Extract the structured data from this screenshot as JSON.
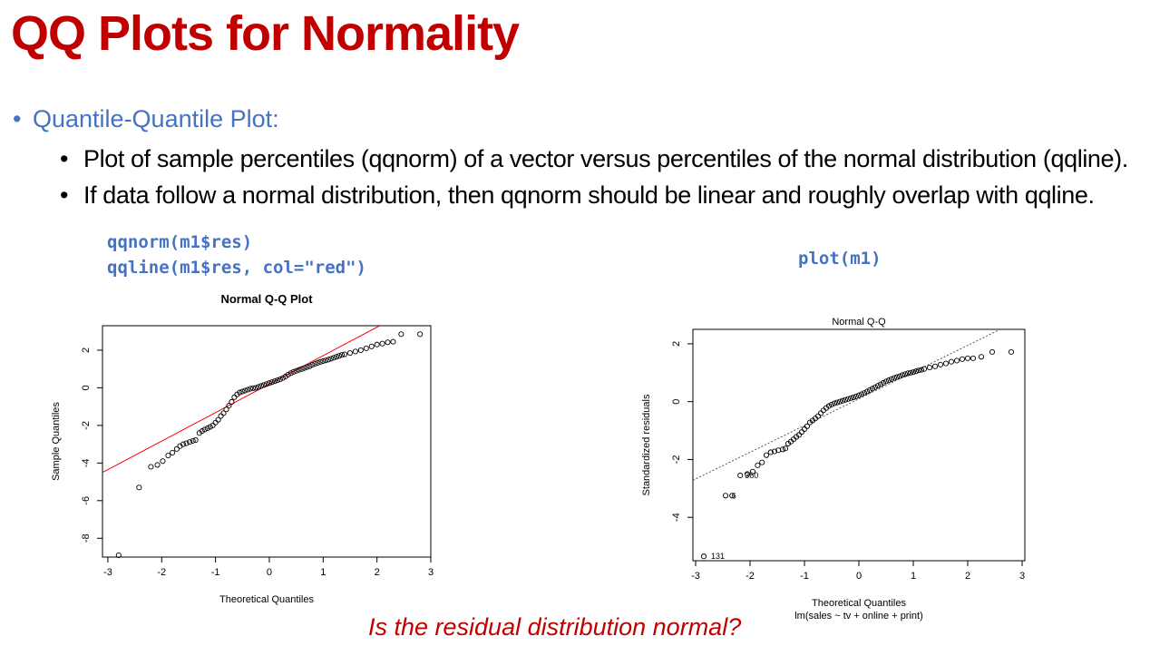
{
  "title": "QQ Plots for Normality",
  "bullet_main": "Quantile-Quantile Plot:",
  "bullet_sub": [
    "Plot of sample percentiles (qqnorm) of a vector versus percentiles of the normal distribution (qqline).",
    "If data follow a normal distribution, then qqnorm should be linear and roughly overlap with qqline."
  ],
  "code_left": [
    "qqnorm(m1$res)",
    "qqline(m1$res, col=\"red\")"
  ],
  "code_right": "plot(m1)",
  "question": "Is the residual distribution normal?",
  "colors": {
    "title": "#c00000",
    "bullet": "#4472c4",
    "code": "#4472c4",
    "line_left": "#ff0000",
    "line_right": "#555555"
  },
  "chart_data": [
    {
      "type": "scatter",
      "title": "Normal Q-Q Plot",
      "xlabel": "Theoretical Quantiles",
      "ylabel": "Sample Quantiles",
      "xlim": [
        -3.1,
        3.0
      ],
      "ylim": [
        -9.0,
        3.3
      ],
      "xticks": [
        -3,
        -2,
        -1,
        0,
        1,
        2,
        3
      ],
      "yticks": [
        -8,
        -6,
        -4,
        -2,
        0,
        2
      ],
      "reference_line": {
        "style": "solid",
        "color": "red",
        "points": [
          [
            -3.1,
            -4.5
          ],
          [
            2.05,
            3.3
          ]
        ]
      },
      "points": [
        [
          -2.8,
          -8.9
        ],
        [
          -2.42,
          -5.3
        ],
        [
          -2.2,
          -4.2
        ],
        [
          -2.08,
          -4.1
        ],
        [
          -1.98,
          -3.9
        ],
        [
          -1.88,
          -3.6
        ],
        [
          -1.8,
          -3.45
        ],
        [
          -1.72,
          -3.25
        ],
        [
          -1.66,
          -3.1
        ],
        [
          -1.6,
          -3.0
        ],
        [
          -1.54,
          -2.95
        ],
        [
          -1.48,
          -2.88
        ],
        [
          -1.42,
          -2.82
        ],
        [
          -1.37,
          -2.78
        ],
        [
          -1.3,
          -2.4
        ],
        [
          -1.25,
          -2.3
        ],
        [
          -1.2,
          -2.22
        ],
        [
          -1.15,
          -2.15
        ],
        [
          -1.1,
          -2.08
        ],
        [
          -1.05,
          -2.0
        ],
        [
          -1.0,
          -1.85
        ],
        [
          -0.95,
          -1.7
        ],
        [
          -0.9,
          -1.5
        ],
        [
          -0.85,
          -1.35
        ],
        [
          -0.8,
          -1.15
        ],
        [
          -0.75,
          -0.95
        ],
        [
          -0.7,
          -0.75
        ],
        [
          -0.65,
          -0.5
        ],
        [
          -0.6,
          -0.35
        ],
        [
          -0.55,
          -0.25
        ],
        [
          -0.5,
          -0.2
        ],
        [
          -0.45,
          -0.15
        ],
        [
          -0.4,
          -0.1
        ],
        [
          -0.35,
          -0.05
        ],
        [
          -0.3,
          -0.02
        ],
        [
          -0.25,
          0.0
        ],
        [
          -0.2,
          0.05
        ],
        [
          -0.15,
          0.1
        ],
        [
          -0.1,
          0.15
        ],
        [
          -0.05,
          0.2
        ],
        [
          0.0,
          0.25
        ],
        [
          0.05,
          0.3
        ],
        [
          0.1,
          0.35
        ],
        [
          0.15,
          0.4
        ],
        [
          0.2,
          0.45
        ],
        [
          0.25,
          0.52
        ],
        [
          0.3,
          0.6
        ],
        [
          0.35,
          0.7
        ],
        [
          0.4,
          0.78
        ],
        [
          0.45,
          0.85
        ],
        [
          0.5,
          0.9
        ],
        [
          0.55,
          0.95
        ],
        [
          0.6,
          1.0
        ],
        [
          0.65,
          1.05
        ],
        [
          0.7,
          1.1
        ],
        [
          0.75,
          1.15
        ],
        [
          0.8,
          1.22
        ],
        [
          0.85,
          1.28
        ],
        [
          0.9,
          1.33
        ],
        [
          0.95,
          1.38
        ],
        [
          1.0,
          1.42
        ],
        [
          1.05,
          1.46
        ],
        [
          1.1,
          1.5
        ],
        [
          1.15,
          1.55
        ],
        [
          1.2,
          1.6
        ],
        [
          1.25,
          1.65
        ],
        [
          1.3,
          1.7
        ],
        [
          1.35,
          1.75
        ],
        [
          1.4,
          1.78
        ],
        [
          1.5,
          1.85
        ],
        [
          1.6,
          1.93
        ],
        [
          1.7,
          2.0
        ],
        [
          1.8,
          2.1
        ],
        [
          1.9,
          2.2
        ],
        [
          2.0,
          2.3
        ],
        [
          2.1,
          2.35
        ],
        [
          2.2,
          2.42
        ],
        [
          2.3,
          2.45
        ],
        [
          2.45,
          2.85
        ],
        [
          2.8,
          2.85
        ]
      ]
    },
    {
      "type": "scatter",
      "title": "Normal Q-Q",
      "xlabel": "Theoretical Quantiles",
      "ylabel": "Standardized residuals",
      "subtitle": "lm(sales ~ tv + online + print)",
      "xlim": [
        -3.05,
        3.05
      ],
      "ylim": [
        -5.5,
        2.5
      ],
      "xticks": [
        -3,
        -2,
        -1,
        0,
        1,
        2,
        3
      ],
      "yticks": [
        -4,
        -2,
        0,
        2
      ],
      "reference_line": {
        "style": "dotted",
        "color": "gray",
        "points": [
          [
            -3.05,
            -2.72
          ],
          [
            2.6,
            2.5
          ]
        ]
      },
      "labels": [
        {
          "text": "131",
          "x": -2.8,
          "y": -5.35
        },
        {
          "text": "6",
          "x": -2.42,
          "y": -3.25
        },
        {
          "text": "360",
          "x": -2.18,
          "y": -2.55
        }
      ],
      "points": [
        [
          -2.85,
          -5.35
        ],
        [
          -2.45,
          -3.25
        ],
        [
          -2.33,
          -3.25
        ],
        [
          -2.18,
          -2.55
        ],
        [
          -2.05,
          -2.5
        ],
        [
          -1.95,
          -2.42
        ],
        [
          -1.86,
          -2.2
        ],
        [
          -1.78,
          -2.1
        ],
        [
          -1.7,
          -1.85
        ],
        [
          -1.62,
          -1.75
        ],
        [
          -1.55,
          -1.72
        ],
        [
          -1.48,
          -1.68
        ],
        [
          -1.4,
          -1.65
        ],
        [
          -1.35,
          -1.62
        ],
        [
          -1.3,
          -1.45
        ],
        [
          -1.25,
          -1.38
        ],
        [
          -1.2,
          -1.3
        ],
        [
          -1.15,
          -1.22
        ],
        [
          -1.1,
          -1.15
        ],
        [
          -1.05,
          -1.05
        ],
        [
          -1.0,
          -0.95
        ],
        [
          -0.95,
          -0.85
        ],
        [
          -0.9,
          -0.72
        ],
        [
          -0.85,
          -0.65
        ],
        [
          -0.8,
          -0.58
        ],
        [
          -0.75,
          -0.5
        ],
        [
          -0.7,
          -0.4
        ],
        [
          -0.65,
          -0.3
        ],
        [
          -0.6,
          -0.22
        ],
        [
          -0.55,
          -0.15
        ],
        [
          -0.5,
          -0.1
        ],
        [
          -0.45,
          -0.06
        ],
        [
          -0.4,
          -0.03
        ],
        [
          -0.35,
          0.0
        ],
        [
          -0.3,
          0.03
        ],
        [
          -0.25,
          0.06
        ],
        [
          -0.2,
          0.09
        ],
        [
          -0.15,
          0.12
        ],
        [
          -0.1,
          0.15
        ],
        [
          -0.05,
          0.18
        ],
        [
          0.0,
          0.22
        ],
        [
          0.05,
          0.26
        ],
        [
          0.1,
          0.3
        ],
        [
          0.15,
          0.35
        ],
        [
          0.2,
          0.4
        ],
        [
          0.25,
          0.45
        ],
        [
          0.3,
          0.5
        ],
        [
          0.35,
          0.55
        ],
        [
          0.4,
          0.6
        ],
        [
          0.45,
          0.65
        ],
        [
          0.5,
          0.7
        ],
        [
          0.55,
          0.74
        ],
        [
          0.6,
          0.78
        ],
        [
          0.65,
          0.82
        ],
        [
          0.7,
          0.85
        ],
        [
          0.75,
          0.88
        ],
        [
          0.8,
          0.92
        ],
        [
          0.85,
          0.95
        ],
        [
          0.9,
          0.98
        ],
        [
          0.95,
          1.0
        ],
        [
          1.0,
          1.02
        ],
        [
          1.05,
          1.05
        ],
        [
          1.1,
          1.08
        ],
        [
          1.15,
          1.1
        ],
        [
          1.2,
          1.13
        ],
        [
          1.3,
          1.18
        ],
        [
          1.4,
          1.22
        ],
        [
          1.5,
          1.28
        ],
        [
          1.6,
          1.32
        ],
        [
          1.7,
          1.38
        ],
        [
          1.8,
          1.42
        ],
        [
          1.9,
          1.47
        ],
        [
          2.0,
          1.5
        ],
        [
          2.1,
          1.5
        ],
        [
          2.25,
          1.55
        ],
        [
          2.45,
          1.72
        ],
        [
          2.8,
          1.72
        ]
      ]
    }
  ]
}
